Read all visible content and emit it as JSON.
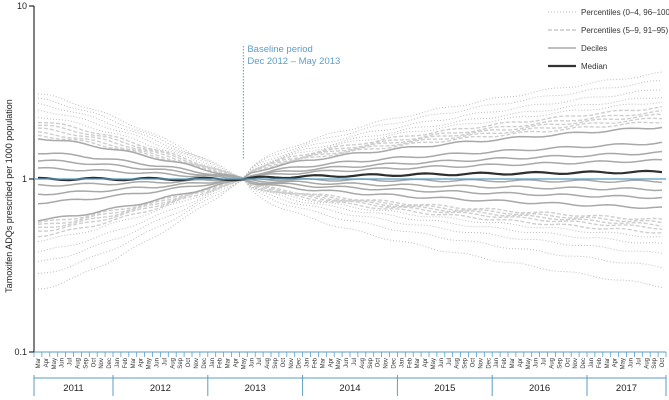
{
  "chart_data": {
    "type": "line",
    "ylabel": "Tamoxifen ADQs prescribed per 1000 population",
    "yscale": "log",
    "ylim": [
      0.1,
      10
    ],
    "yticks": [
      "0.1",
      "1",
      "10"
    ],
    "x_start": "2011-03",
    "x_end": "2017-10",
    "months": [
      "Mar",
      "Apr",
      "May",
      "Jun",
      "Jul",
      "Aug",
      "Sep",
      "Oct",
      "Nov",
      "Dec",
      "Jan",
      "Feb",
      "Mar",
      "Apr",
      "May",
      "Jun",
      "Jul",
      "Aug",
      "Sep",
      "Oct",
      "Nov",
      "Dec",
      "Jan",
      "Feb",
      "Mar",
      "Apr",
      "May",
      "Jun",
      "Jul",
      "Aug",
      "Sep",
      "Oct",
      "Nov",
      "Dec",
      "Jan",
      "Feb",
      "Mar",
      "Apr",
      "May",
      "Jun",
      "Jul",
      "Aug",
      "Sep",
      "Oct",
      "Nov",
      "Dec",
      "Jan",
      "Feb",
      "Mar",
      "Apr",
      "May",
      "Jun",
      "Jul",
      "Aug",
      "Sep",
      "Oct",
      "Nov",
      "Dec",
      "Jan",
      "Feb",
      "Mar",
      "Apr",
      "May",
      "Jun",
      "Jul",
      "Aug",
      "Sep",
      "Oct",
      "Nov",
      "Dec",
      "Jan",
      "Feb",
      "Mar",
      "Apr",
      "May",
      "Jun",
      "Jul",
      "Aug",
      "Sep",
      "Oct"
    ],
    "years": [
      "2011",
      "2012",
      "2013",
      "2014",
      "2015",
      "2016",
      "2017"
    ],
    "baseline_month_index": 26,
    "annotation": {
      "line1": "Baseline period",
      "line2": "Dec 2012 – May 2013"
    },
    "legend": [
      {
        "label": "Percentiles (0–4, 96–100)",
        "style": "dotted",
        "color": "#b8b8b8"
      },
      {
        "label": "Percentiles (5–9, 91–95)",
        "style": "dashed",
        "color": "#c8c8c8"
      },
      {
        "label": "Deciles",
        "style": "solid",
        "color": "#a8a8a8"
      },
      {
        "label": "Median",
        "style": "solid-bold",
        "color": "#333333"
      }
    ],
    "reference_line": {
      "value": 1,
      "color": "#5b9ec6"
    },
    "series": [
      {
        "group": "outer",
        "start": 3.1,
        "end": 4.1
      },
      {
        "group": "outer",
        "start": 2.9,
        "end": 3.7
      },
      {
        "group": "outer",
        "start": 2.7,
        "end": 3.3
      },
      {
        "group": "outer",
        "start": 2.5,
        "end": 3.0
      },
      {
        "group": "outer",
        "start": 2.3,
        "end": 2.8
      },
      {
        "group": "mid",
        "start": 2.15,
        "end": 2.6
      },
      {
        "group": "mid",
        "start": 2.05,
        "end": 2.45
      },
      {
        "group": "mid",
        "start": 1.95,
        "end": 2.35
      },
      {
        "group": "mid",
        "start": 1.85,
        "end": 2.25
      },
      {
        "group": "mid",
        "start": 1.78,
        "end": 2.15
      },
      {
        "group": "decile",
        "start": 1.72,
        "end": 2.0
      },
      {
        "group": "decile",
        "start": 1.42,
        "end": 1.62
      },
      {
        "group": "decile",
        "start": 1.28,
        "end": 1.42
      },
      {
        "group": "decile",
        "start": 1.15,
        "end": 1.28
      },
      {
        "group": "median",
        "start": 1.0,
        "end": 1.1
      },
      {
        "group": "decile",
        "start": 0.92,
        "end": 0.97
      },
      {
        "group": "decile",
        "start": 0.82,
        "end": 0.87
      },
      {
        "group": "decile",
        "start": 0.73,
        "end": 0.78
      },
      {
        "group": "decile",
        "start": 0.58,
        "end": 0.68
      },
      {
        "group": "mid",
        "start": 0.56,
        "end": 0.58
      },
      {
        "group": "mid",
        "start": 0.54,
        "end": 0.56
      },
      {
        "group": "mid",
        "start": 0.52,
        "end": 0.54
      },
      {
        "group": "mid",
        "start": 0.5,
        "end": 0.52
      },
      {
        "group": "mid",
        "start": 0.47,
        "end": 0.49
      },
      {
        "group": "outer",
        "start": 0.44,
        "end": 0.46
      },
      {
        "group": "outer",
        "start": 0.38,
        "end": 0.42
      },
      {
        "group": "outer",
        "start": 0.33,
        "end": 0.37
      },
      {
        "group": "outer",
        "start": 0.28,
        "end": 0.31
      },
      {
        "group": "outer",
        "start": 0.23,
        "end": 0.24
      }
    ]
  }
}
